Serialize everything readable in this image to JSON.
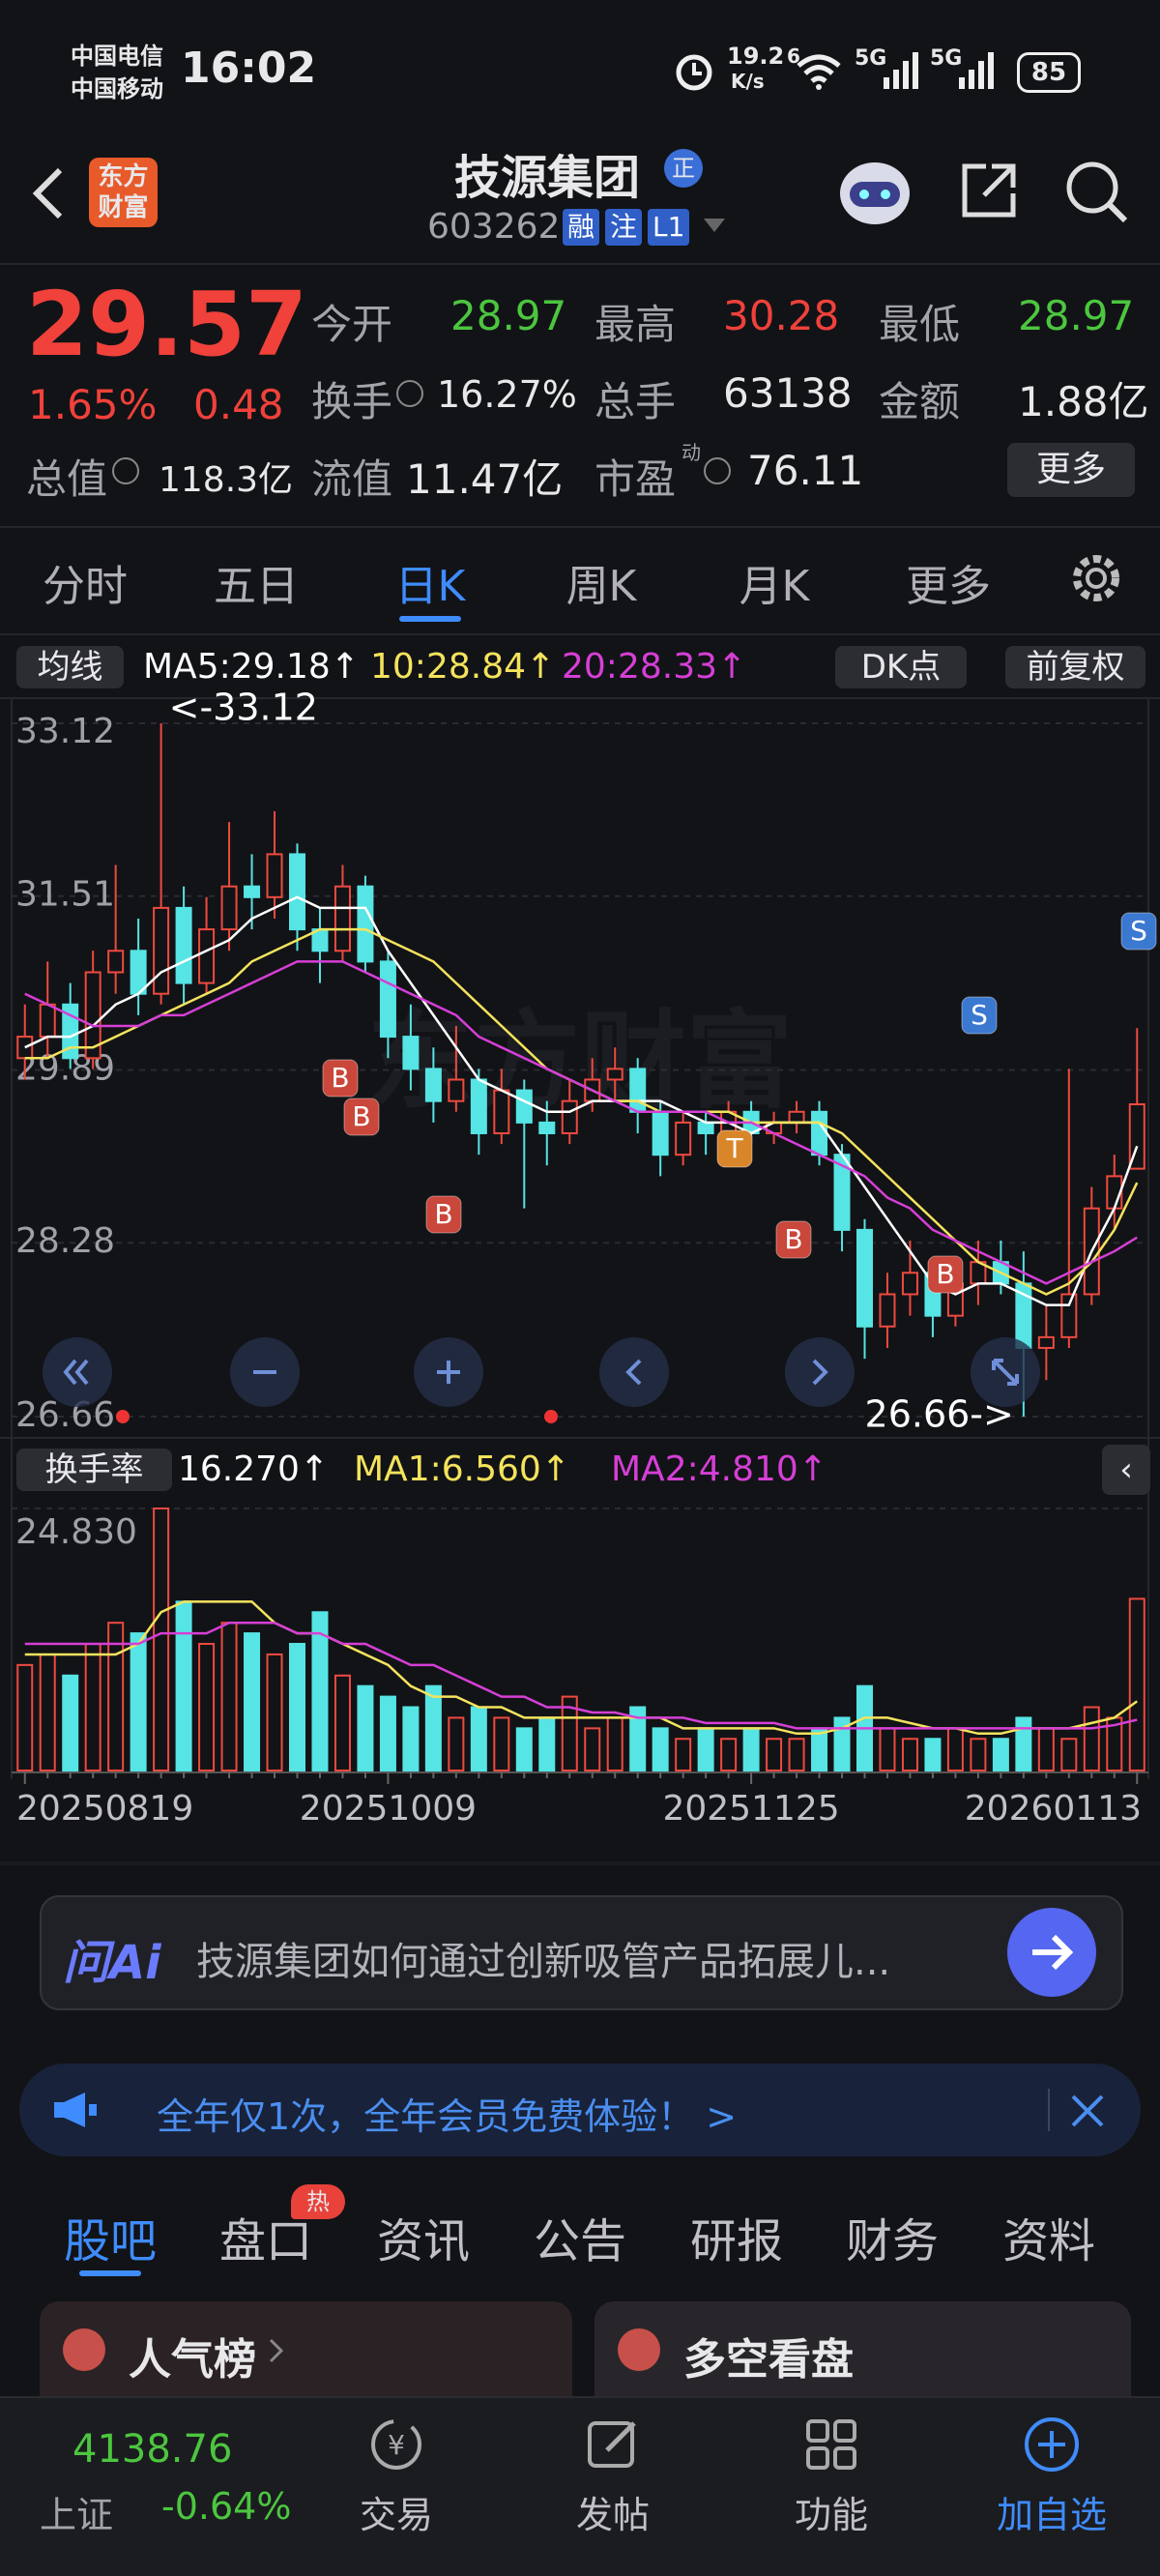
{
  "status_bar": {
    "carrier_1": "中国电信",
    "carrier_2": "中国移动",
    "time": "16:02",
    "net_speed": "19.2",
    "net_speed_unit": "K/s",
    "wifi_label": "6",
    "signal_1": "5G",
    "signal_2": "5G",
    "battery": "85"
  },
  "header": {
    "logo_line_1": "东方",
    "logo_line_2": "财富",
    "stock_name": "技源集团",
    "badge": "正",
    "stock_code": "603262",
    "tags": [
      "融",
      "注",
      "L1"
    ]
  },
  "quote": {
    "price": "29.57",
    "change_percent": "1.65%",
    "change": "0.48",
    "open": {
      "label": "今开",
      "value": "28.97"
    },
    "high": {
      "label": "最高",
      "value": "30.28"
    },
    "low": {
      "label": "最低",
      "value": "28.97"
    },
    "turnover": {
      "label": "换手",
      "value": "16.27%"
    },
    "volume": {
      "label": "总手",
      "value": "63138"
    },
    "amount": {
      "label": "金额",
      "value": "1.88亿"
    },
    "market_cap": {
      "label": "总值",
      "value": "118.3亿"
    },
    "float_cap": {
      "label": "流值",
      "value": "11.47亿"
    },
    "pe": {
      "label": "市盈",
      "superscript": "动",
      "value": "76.11"
    },
    "more_button": "更多"
  },
  "period_tabs": {
    "items": [
      "分时",
      "五日",
      "日K",
      "周K",
      "月K",
      "更多"
    ],
    "active": 2
  },
  "chart_data": {
    "type": "candlestick",
    "indicator_button": "均线",
    "ma_labels": [
      "MA5:29.18↑",
      "10:28.84↑",
      "20:28.33↑"
    ],
    "dk_button": "DK点",
    "adjust_button": "前复权",
    "categories": [
      "20250819",
      null,
      null,
      null,
      null,
      null,
      null,
      null,
      null,
      null,
      null,
      null,
      null,
      null,
      null,
      null,
      "20251009",
      null,
      null,
      null,
      null,
      null,
      null,
      null,
      null,
      null,
      null,
      null,
      null,
      null,
      null,
      null,
      "20251125",
      null,
      null,
      null,
      null,
      null,
      null,
      null,
      null,
      null,
      null,
      null,
      null,
      null,
      null,
      null,
      null,
      "20260113"
    ],
    "ohlc": [
      [
        30.0,
        30.5,
        29.8,
        30.2
      ],
      [
        30.2,
        30.9,
        30.0,
        30.5
      ],
      [
        30.5,
        30.7,
        29.9,
        30.0
      ],
      [
        30.0,
        31.0,
        29.9,
        30.8
      ],
      [
        30.8,
        31.8,
        30.6,
        31.0
      ],
      [
        31.0,
        31.3,
        30.4,
        30.6
      ],
      [
        30.6,
        33.12,
        30.5,
        31.4
      ],
      [
        31.4,
        31.6,
        30.5,
        30.7
      ],
      [
        30.7,
        31.5,
        30.6,
        31.2
      ],
      [
        31.2,
        32.2,
        31.0,
        31.6
      ],
      [
        31.6,
        31.9,
        31.2,
        31.5
      ],
      [
        31.5,
        32.3,
        31.3,
        31.9
      ],
      [
        31.9,
        32.0,
        31.0,
        31.2
      ],
      [
        31.2,
        31.4,
        30.7,
        31.0
      ],
      [
        31.0,
        31.8,
        30.9,
        31.6
      ],
      [
        31.6,
        31.7,
        30.8,
        30.9
      ],
      [
        30.9,
        31.0,
        30.0,
        30.2
      ],
      [
        30.2,
        30.5,
        29.7,
        29.9
      ],
      [
        29.9,
        30.1,
        29.4,
        29.6
      ],
      [
        29.6,
        30.3,
        29.5,
        29.8
      ],
      [
        29.8,
        29.9,
        29.1,
        29.3
      ],
      [
        29.3,
        29.9,
        29.2,
        29.7
      ],
      [
        29.7,
        29.8,
        28.6,
        29.4
      ],
      [
        29.4,
        29.6,
        29.0,
        29.3
      ],
      [
        29.3,
        29.8,
        29.2,
        29.6
      ],
      [
        29.6,
        30.0,
        29.5,
        29.8
      ],
      [
        29.8,
        30.1,
        29.6,
        29.9
      ],
      [
        29.9,
        30.0,
        29.3,
        29.5
      ],
      [
        29.5,
        29.6,
        28.9,
        29.1
      ],
      [
        29.1,
        29.5,
        29.0,
        29.4
      ],
      [
        29.4,
        29.5,
        29.1,
        29.3
      ],
      [
        29.3,
        29.6,
        29.2,
        29.5
      ],
      [
        29.5,
        29.6,
        29.2,
        29.3
      ],
      [
        29.3,
        29.5,
        29.2,
        29.4
      ],
      [
        29.4,
        29.6,
        29.3,
        29.5
      ],
      [
        29.5,
        29.6,
        29.0,
        29.1
      ],
      [
        29.1,
        29.2,
        28.2,
        28.4
      ],
      [
        28.4,
        28.5,
        27.2,
        27.5
      ],
      [
        27.5,
        28.0,
        27.3,
        27.8
      ],
      [
        27.8,
        28.3,
        27.6,
        28.0
      ],
      [
        28.0,
        28.1,
        27.4,
        27.6
      ],
      [
        27.6,
        28.0,
        27.5,
        27.9
      ],
      [
        27.9,
        28.3,
        27.7,
        28.1
      ],
      [
        28.1,
        28.3,
        27.8,
        27.9
      ],
      [
        27.9,
        28.2,
        26.66,
        27.3
      ],
      [
        27.3,
        27.7,
        27.0,
        27.4
      ],
      [
        27.4,
        29.9,
        27.3,
        27.8
      ],
      [
        27.8,
        28.8,
        27.7,
        28.6
      ],
      [
        28.6,
        29.1,
        28.4,
        28.9
      ],
      [
        28.97,
        30.28,
        28.97,
        29.57
      ]
    ],
    "ylim": [
      26.66,
      33.12
    ],
    "yticks": [
      33.12,
      31.51,
      29.89,
      28.28,
      26.66
    ],
    "up_color": "#ee4a3f",
    "down_color": "#56e4e4",
    "ma_series": [
      {
        "color": "#ffffff",
        "values": [
          30.1,
          30.2,
          30.2,
          30.3,
          30.5,
          30.6,
          30.8,
          30.9,
          31.0,
          31.1,
          31.3,
          31.4,
          31.5,
          31.4,
          31.4,
          31.4,
          31.0,
          30.7,
          30.4,
          30.1,
          29.8,
          29.7,
          29.6,
          29.5,
          29.5,
          29.6,
          29.6,
          29.6,
          29.6,
          29.5,
          29.4,
          29.4,
          29.3,
          29.4,
          29.4,
          29.4,
          29.1,
          28.8,
          28.5,
          28.2,
          27.9,
          27.8,
          27.9,
          27.9,
          27.8,
          27.7,
          27.7,
          28.2,
          28.6,
          29.18
        ]
      },
      {
        "color": "#f4e35c",
        "values": [
          30.0,
          30.0,
          30.1,
          30.1,
          30.2,
          30.3,
          30.4,
          30.5,
          30.6,
          30.7,
          30.9,
          31.0,
          31.1,
          31.2,
          31.2,
          31.2,
          31.1,
          31.0,
          30.9,
          30.7,
          30.5,
          30.3,
          30.1,
          29.9,
          29.8,
          29.7,
          29.6,
          29.6,
          29.5,
          29.5,
          29.5,
          29.5,
          29.4,
          29.4,
          29.4,
          29.4,
          29.3,
          29.1,
          28.9,
          28.7,
          28.5,
          28.3,
          28.1,
          28.0,
          27.9,
          27.8,
          27.9,
          28.1,
          28.4,
          28.84
        ]
      },
      {
        "color": "#d63fd6",
        "values": [
          30.6,
          30.5,
          30.4,
          30.3,
          30.3,
          30.3,
          30.4,
          30.4,
          30.5,
          30.6,
          30.7,
          30.8,
          30.9,
          30.9,
          30.9,
          30.8,
          30.7,
          30.6,
          30.5,
          30.4,
          30.2,
          30.1,
          30.0,
          29.9,
          29.8,
          29.7,
          29.6,
          29.5,
          29.5,
          29.5,
          29.5,
          29.4,
          29.4,
          29.3,
          29.2,
          29.1,
          29.0,
          28.9,
          28.7,
          28.6,
          28.4,
          28.3,
          28.2,
          28.1,
          28.0,
          27.9,
          28.0,
          28.1,
          28.2,
          28.33
        ]
      }
    ],
    "annotations": [
      "<-33.12",
      "26.66->"
    ],
    "signals": [
      "B",
      "B",
      "B",
      "T",
      "B",
      "B",
      "S",
      "S"
    ],
    "turnover": {
      "indicator_button": "换手率",
      "labels": [
        "16.270↑",
        "MA1:6.560↑",
        "MA2:4.810↑"
      ],
      "values": [
        10,
        11,
        9,
        12,
        14,
        13,
        24.83,
        16,
        12,
        14,
        13,
        11,
        12,
        15,
        9,
        8,
        7,
        6,
        8,
        5,
        6,
        5,
        4,
        5,
        7,
        4,
        5,
        6,
        4,
        3,
        4,
        3,
        4,
        3,
        3,
        4,
        5,
        8,
        4,
        3,
        3,
        4,
        3,
        3,
        5,
        4,
        3,
        6,
        5,
        16.27
      ],
      "ylim": [
        0,
        24.83
      ],
      "yticks": [
        {
          "value": 24.83,
          "label": "24.830"
        }
      ],
      "ma_series": [
        {
          "color": "#f4e35c",
          "values": [
            11,
            11,
            11,
            11,
            11,
            12,
            15,
            16,
            16,
            16,
            16,
            14,
            13,
            13,
            12,
            11,
            10,
            8,
            7,
            7,
            6,
            6,
            5,
            5,
            5,
            5,
            5,
            5,
            5,
            4,
            4,
            4,
            4,
            4,
            3.5,
            3.5,
            4,
            5,
            5,
            4.5,
            4,
            4,
            3.5,
            3.5,
            4,
            4,
            4,
            4.5,
            5,
            6.56
          ]
        },
        {
          "color": "#d63fd6",
          "values": [
            12,
            12,
            12,
            12,
            12,
            12,
            13,
            13,
            13,
            14,
            14,
            14,
            13,
            13,
            12,
            12,
            11,
            10,
            10,
            9,
            8,
            7,
            7,
            6,
            6,
            5.5,
            5.5,
            5,
            5,
            5,
            4.5,
            4.5,
            4.5,
            4.5,
            4,
            4,
            4,
            4,
            4,
            4,
            4,
            4,
            4,
            4,
            4,
            4,
            4,
            4,
            4.3,
            4.81
          ]
        }
      ]
    }
  },
  "ai_bar": {
    "brand": "问Ai",
    "prompt": "技源集团如何通过创新吸管产品拓展儿..."
  },
  "banner": {
    "text": "全年仅1次，全年会员免费体验！ >"
  },
  "content_tabs": {
    "items": [
      "股吧",
      "盘口",
      "资讯",
      "公告",
      "研报",
      "财务",
      "资料"
    ],
    "hot_badge": "热"
  },
  "cards": [
    "人气榜",
    "多空看盘"
  ],
  "bottom_nav": {
    "index_value": "4138.76",
    "index_name": "上证",
    "index_change": "-0.64%",
    "items": [
      "交易",
      "发帖",
      "功能",
      "加自选"
    ]
  }
}
